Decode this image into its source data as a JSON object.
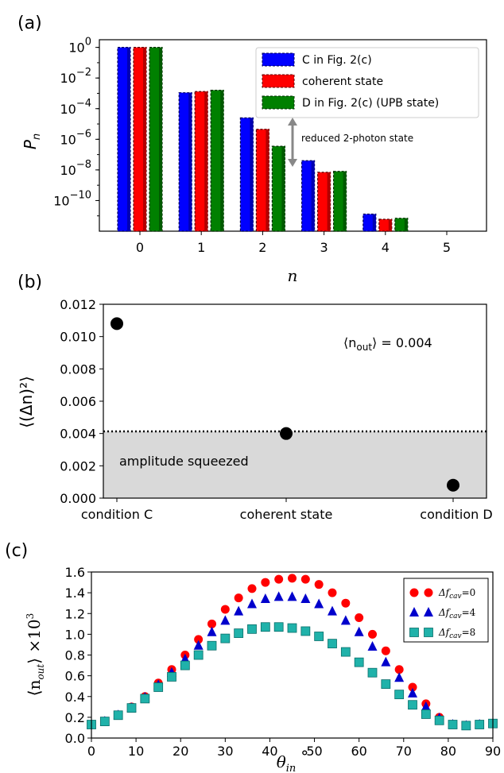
{
  "chart_data": [
    {
      "panel": "(a)",
      "type": "bar",
      "yscale": "log",
      "xlabel": "n",
      "ylabel": "P_n",
      "categories": [
        "0",
        "1",
        "2",
        "3",
        "4",
        "5"
      ],
      "ylim": [
        1e-12,
        10
      ],
      "yticklabels": [
        "10^0",
        "10^-2",
        "10^-4",
        "10^-6",
        "10^-8",
        "10^-10"
      ],
      "series": [
        {
          "name": "C in Fig. 2(c)",
          "color": "#0000ff",
          "values": [
            1.0,
            0.0011,
            2.5e-05,
            4e-08,
            1.3e-11,
            null
          ]
        },
        {
          "name": "coherent state",
          "color": "#ff0000",
          "values": [
            1.0,
            0.0013,
            4.5e-06,
            7e-09,
            6e-12,
            null
          ]
        },
        {
          "name": "D in Fig. 2(c) (UPB state)",
          "color": "#008000",
          "values": [
            1.0,
            0.0016,
            3.5e-07,
            8e-09,
            7e-12,
            null
          ]
        }
      ],
      "annotations": [
        "reduced 2-photon state"
      ],
      "legend": "top-right"
    },
    {
      "panel": "(b)",
      "type": "scatter",
      "ylabel": "⟨(Δn)²⟩",
      "categories": [
        "condition C",
        "coherent state",
        "condition D"
      ],
      "values": [
        0.0108,
        0.004,
        0.0008
      ],
      "ylim": [
        0.0,
        0.012
      ],
      "yticks": [
        "0.000",
        "0.002",
        "0.004",
        "0.006",
        "0.008",
        "0.010",
        "0.012"
      ],
      "reference_line": 0.004,
      "shaded_region_label": "amplitude squeezed",
      "annotation": "⟨n_out⟩ = 0.004",
      "point_color": "#000000",
      "shade_color": "#d9d9d9"
    },
    {
      "panel": "(c)",
      "type": "scatter",
      "xlabel": "θ_in °",
      "ylabel": "⟨n_out⟩ ×10³",
      "xlim": [
        0,
        90
      ],
      "ylim": [
        0.0,
        1.6
      ],
      "xticks": [
        "0",
        "10",
        "20",
        "30",
        "40",
        "50",
        "60",
        "70",
        "80",
        "90"
      ],
      "yticks": [
        "0.0",
        "0.2",
        "0.4",
        "0.6",
        "0.8",
        "1.0",
        "1.2",
        "1.4",
        "1.6"
      ],
      "x": [
        0,
        3,
        6,
        9,
        12,
        15,
        18,
        21,
        24,
        27,
        30,
        33,
        36,
        39,
        42,
        45,
        48,
        51,
        54,
        57,
        60,
        63,
        66,
        69,
        72,
        75,
        78,
        81,
        84,
        87,
        90
      ],
      "series": [
        {
          "name": "Δf_cav=0",
          "marker": "circle",
          "color": "#ff0000",
          "values": [
            0.13,
            0.16,
            0.22,
            0.3,
            0.4,
            0.53,
            0.66,
            0.8,
            0.95,
            1.1,
            1.24,
            1.35,
            1.44,
            1.5,
            1.53,
            1.54,
            1.53,
            1.48,
            1.4,
            1.3,
            1.16,
            1.0,
            0.84,
            0.66,
            0.49,
            0.33,
            0.2,
            0.13,
            0.12,
            0.13,
            0.14
          ]
        },
        {
          "name": "Δf_cav=4",
          "marker": "triangle",
          "color": "#0000cc",
          "values": [
            0.13,
            0.16,
            0.22,
            0.29,
            0.39,
            0.51,
            0.63,
            0.76,
            0.89,
            1.02,
            1.13,
            1.22,
            1.29,
            1.34,
            1.36,
            1.36,
            1.34,
            1.29,
            1.22,
            1.13,
            1.02,
            0.88,
            0.73,
            0.58,
            0.43,
            0.3,
            0.19,
            0.13,
            0.12,
            0.13,
            0.14
          ]
        },
        {
          "name": "Δf_cav=8",
          "marker": "square",
          "color": "#20b2aa",
          "values": [
            0.13,
            0.16,
            0.22,
            0.29,
            0.38,
            0.49,
            0.59,
            0.7,
            0.8,
            0.89,
            0.96,
            1.01,
            1.05,
            1.07,
            1.07,
            1.06,
            1.03,
            0.98,
            0.91,
            0.83,
            0.73,
            0.63,
            0.52,
            0.42,
            0.32,
            0.23,
            0.17,
            0.13,
            0.12,
            0.13,
            0.14
          ]
        }
      ],
      "legend": "top-right"
    }
  ],
  "labels": {
    "panel_a": "(a)",
    "panel_b": "(b)",
    "panel_c": "(c)",
    "a_xlabel": "n",
    "a_ylabel_main": "P",
    "a_ylabel_sub": "n",
    "a_ytick_base": "10",
    "a_ytick_exps": [
      "0",
      "−2",
      "−4",
      "−6",
      "−8",
      "−10"
    ],
    "a_annotation": "reduced 2-photon state",
    "b_annotation_prefix": "⟨n",
    "b_annotation_sub": "out",
    "b_annotation_suffix": "⟩ = 0.004",
    "b_shade_label": "amplitude squeezed",
    "b_ylabel": "⟨(Δn)²⟩",
    "c_xlabel_main": "θ",
    "c_xlabel_sub": "in",
    "c_xlabel_deg": "°",
    "c_ylabel_open": "⟨n",
    "c_ylabel_sub": "out",
    "c_ylabel_close": "⟩ ×10",
    "c_ylabel_sup": "3",
    "c_legend_prefix": "Δf",
    "c_legend_sub": "cav",
    "c_legend_vals": [
      "=0",
      "=4",
      "=8"
    ]
  }
}
